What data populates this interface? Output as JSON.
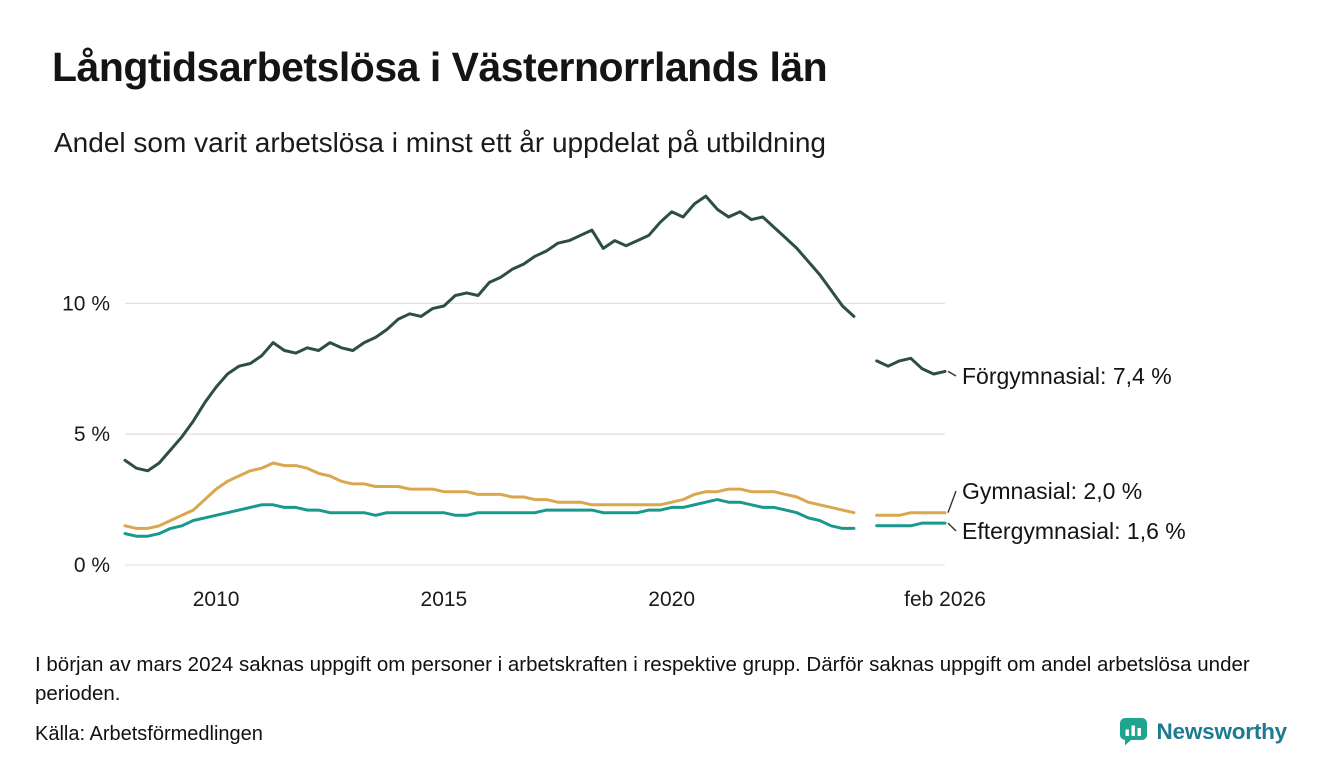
{
  "header": {
    "title": "Långtidsarbetslösa i Västernorrlands län",
    "subtitle": "Andel som varit arbetslösa i minst ett år uppdelat på utbildning"
  },
  "chart_data": {
    "type": "line",
    "title": "Långtidsarbetslösa i Västernorrlands län",
    "subtitle": "Andel som varit arbetslösa i minst ett år uppdelat på utbildning",
    "unit": "%",
    "grid": "horizontal",
    "legend_position": "right-end-labels",
    "xlim": [
      2008,
      2026
    ],
    "ylim": [
      0,
      14.6
    ],
    "yticks": [
      {
        "value": 0,
        "label": "0 %"
      },
      {
        "value": 5,
        "label": "5 %"
      },
      {
        "value": 10,
        "label": "10 %"
      }
    ],
    "xticks": [
      {
        "value": 2010,
        "label": "2010"
      },
      {
        "value": 2015,
        "label": "2015"
      },
      {
        "value": 2020,
        "label": "2020"
      },
      {
        "value": 2026,
        "label": "feb 2026"
      }
    ],
    "x": [
      2008,
      2008.25,
      2008.5,
      2008.75,
      2009,
      2009.25,
      2009.5,
      2009.75,
      2010,
      2010.25,
      2010.5,
      2010.75,
      2011,
      2011.25,
      2011.5,
      2011.75,
      2012,
      2012.25,
      2012.5,
      2012.75,
      2013,
      2013.25,
      2013.5,
      2013.75,
      2014,
      2014.25,
      2014.5,
      2014.75,
      2015,
      2015.25,
      2015.5,
      2015.75,
      2016,
      2016.25,
      2016.5,
      2016.75,
      2017,
      2017.25,
      2017.5,
      2017.75,
      2018,
      2018.25,
      2018.5,
      2018.75,
      2019,
      2019.25,
      2019.5,
      2019.75,
      2020,
      2020.25,
      2020.5,
      2020.75,
      2021,
      2021.25,
      2021.5,
      2021.75,
      2022,
      2022.25,
      2022.5,
      2022.75,
      2023,
      2023.25,
      2023.5,
      2023.75,
      2024,
      2024.25,
      2024.5,
      2024.75,
      2025,
      2025.25,
      2025.5,
      2025.75,
      2026
    ],
    "series": [
      {
        "name": "Förgymnasial",
        "color": "#2e4d49",
        "end_label": "Förgymnasial: 7,4 %",
        "latest_value": 7.4,
        "values": [
          4.0,
          3.7,
          3.6,
          3.9,
          4.4,
          4.9,
          5.5,
          6.2,
          6.8,
          7.3,
          7.6,
          7.7,
          8.0,
          8.5,
          8.2,
          8.1,
          8.3,
          8.2,
          8.5,
          8.3,
          8.2,
          8.5,
          8.7,
          9.0,
          9.4,
          9.6,
          9.5,
          9.8,
          9.9,
          10.3,
          10.4,
          10.3,
          10.8,
          11.0,
          11.3,
          11.5,
          11.8,
          12.0,
          12.3,
          12.4,
          12.6,
          12.8,
          12.1,
          12.4,
          12.2,
          12.4,
          12.6,
          13.1,
          13.5,
          13.3,
          13.8,
          14.1,
          13.6,
          13.3,
          13.5,
          13.2,
          13.3,
          12.9,
          12.5,
          12.1,
          11.6,
          11.1,
          10.5,
          9.9,
          9.5,
          null,
          7.8,
          7.6,
          7.8,
          7.9,
          7.5,
          7.3,
          7.4
        ]
      },
      {
        "name": "Gymnasial",
        "color": "#d9a74e",
        "end_label": "Gymnasial: 2,0 %",
        "latest_value": 2.0,
        "values": [
          1.5,
          1.4,
          1.4,
          1.5,
          1.7,
          1.9,
          2.1,
          2.5,
          2.9,
          3.2,
          3.4,
          3.6,
          3.7,
          3.9,
          3.8,
          3.8,
          3.7,
          3.5,
          3.4,
          3.2,
          3.1,
          3.1,
          3.0,
          3.0,
          3.0,
          2.9,
          2.9,
          2.9,
          2.8,
          2.8,
          2.8,
          2.7,
          2.7,
          2.7,
          2.6,
          2.6,
          2.5,
          2.5,
          2.4,
          2.4,
          2.4,
          2.3,
          2.3,
          2.3,
          2.3,
          2.3,
          2.3,
          2.3,
          2.4,
          2.5,
          2.7,
          2.8,
          2.8,
          2.9,
          2.9,
          2.8,
          2.8,
          2.8,
          2.7,
          2.6,
          2.4,
          2.3,
          2.2,
          2.1,
          2.0,
          null,
          1.9,
          1.9,
          1.9,
          2.0,
          2.0,
          2.0,
          2.0
        ]
      },
      {
        "name": "Eftergymnasial",
        "color": "#18998b",
        "end_label": "Eftergymnasial: 1,6 %",
        "latest_value": 1.6,
        "values": [
          1.2,
          1.1,
          1.1,
          1.2,
          1.4,
          1.5,
          1.7,
          1.8,
          1.9,
          2.0,
          2.1,
          2.2,
          2.3,
          2.3,
          2.2,
          2.2,
          2.1,
          2.1,
          2.0,
          2.0,
          2.0,
          2.0,
          1.9,
          2.0,
          2.0,
          2.0,
          2.0,
          2.0,
          2.0,
          1.9,
          1.9,
          2.0,
          2.0,
          2.0,
          2.0,
          2.0,
          2.0,
          2.1,
          2.1,
          2.1,
          2.1,
          2.1,
          2.0,
          2.0,
          2.0,
          2.0,
          2.1,
          2.1,
          2.2,
          2.2,
          2.3,
          2.4,
          2.5,
          2.4,
          2.4,
          2.3,
          2.2,
          2.2,
          2.1,
          2.0,
          1.8,
          1.7,
          1.5,
          1.4,
          1.4,
          null,
          1.5,
          1.5,
          1.5,
          1.5,
          1.6,
          1.6,
          1.6
        ]
      }
    ],
    "data_gap": {
      "period": "mars 2024",
      "x_range": [
        2024.1,
        2024.4
      ]
    }
  },
  "notes": {
    "footnote": "I början av mars 2024 saknas uppgift om personer i arbetskraften i respektive grupp. Därför saknas uppgift om andel arbetslösa under perioden.",
    "source": "Källa: Arbetsförmedlingen"
  },
  "logo": {
    "text": "Newsworthy",
    "icon": "newsworthy-speech-bubble-bar-chart-icon",
    "icon_color": "#1fa48e",
    "text_color": "#1d7a90"
  }
}
